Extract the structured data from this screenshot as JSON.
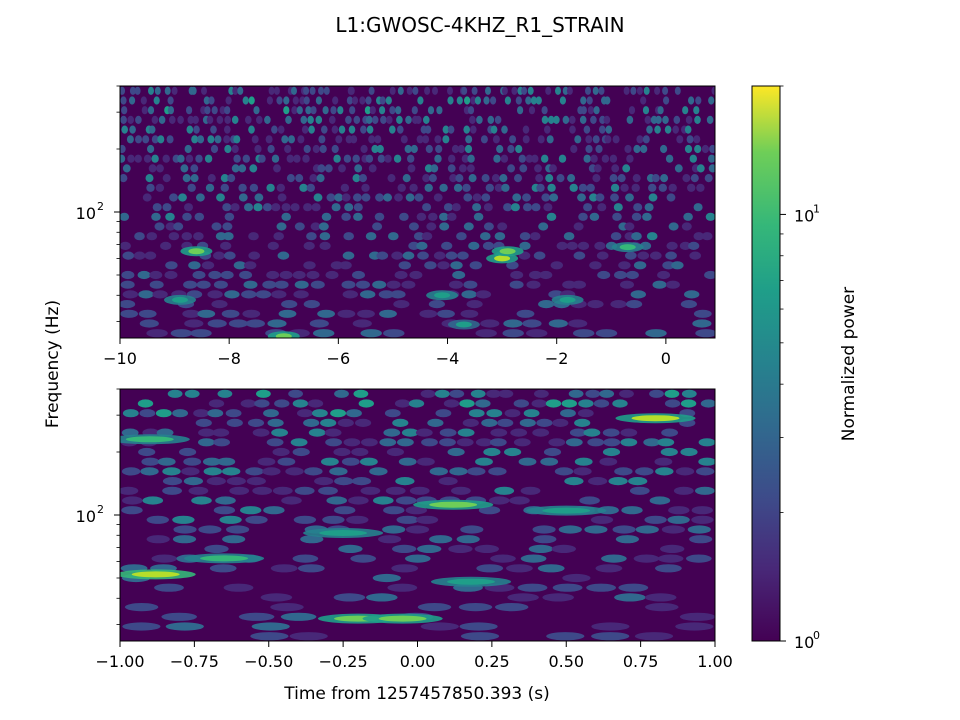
{
  "figure": {
    "suptitle": "L1:GWOSC-4KHZ_R1_STRAIN",
    "xlabel": "Time from 1257457850.393 (s)",
    "ylabel": "Frequency (Hz)",
    "colorbar_label": "Normalized power"
  },
  "chart_data": [
    {
      "type": "heatmap",
      "title": "",
      "xlabel": "",
      "ylabel": "Frequency (Hz)",
      "xlim": [
        -10,
        0.9
      ],
      "ylim": [
        25,
        400
      ],
      "yscale": "log",
      "grid": false,
      "x_ticks": [
        -10,
        -8,
        -6,
        -4,
        -2,
        0
      ],
      "x_tick_labels": [
        "−10",
        "−8",
        "−6",
        "−4",
        "−2",
        "0"
      ],
      "y_ticks": [
        100
      ],
      "y_tick_labels": [
        "10",
        "2"
      ],
      "colormap": "viridis",
      "blobs": [
        {
          "x": -8.6,
          "f": 65,
          "v": 9
        },
        {
          "x": -7.0,
          "f": 25.5,
          "v": 11
        },
        {
          "x": -3.0,
          "f": 60,
          "v": 13
        },
        {
          "x": -2.9,
          "f": 65,
          "v": 10
        },
        {
          "x": -4.1,
          "f": 40,
          "v": 6
        },
        {
          "x": -8.9,
          "f": 38,
          "v": 6
        },
        {
          "x": -1.8,
          "f": 38,
          "v": 6
        },
        {
          "x": -0.7,
          "f": 68,
          "v": 8
        },
        {
          "x": -3.7,
          "f": 29,
          "v": 5
        }
      ]
    },
    {
      "type": "heatmap",
      "title": "",
      "xlabel": "Time from 1257457850.393 (s)",
      "ylabel": "Frequency (Hz)",
      "xlim": [
        -1,
        1
      ],
      "ylim": [
        25,
        400
      ],
      "yscale": "log",
      "grid": false,
      "x_ticks": [
        -1,
        -0.75,
        -0.5,
        -0.25,
        0,
        0.25,
        0.5,
        0.75,
        1
      ],
      "x_tick_labels": [
        "−1.00",
        "−0.75",
        "−0.50",
        "−0.25",
        "0.00",
        "0.25",
        "0.50",
        "0.75",
        "1.00"
      ],
      "y_ticks": [
        100
      ],
      "y_tick_labels": [
        "10",
        "2"
      ],
      "colormap": "viridis",
      "blobs": [
        {
          "x": -0.88,
          "f": 52,
          "v": 15
        },
        {
          "x": -0.65,
          "f": 62,
          "v": 8
        },
        {
          "x": -0.2,
          "f": 32,
          "v": 9
        },
        {
          "x": -0.05,
          "f": 32,
          "v": 10
        },
        {
          "x": 0.12,
          "f": 112,
          "v": 9
        },
        {
          "x": 0.8,
          "f": 290,
          "v": 13
        },
        {
          "x": 0.18,
          "f": 48,
          "v": 6
        },
        {
          "x": 0.5,
          "f": 105,
          "v": 6
        },
        {
          "x": -0.25,
          "f": 82,
          "v": 6
        },
        {
          "x": -0.9,
          "f": 230,
          "v": 7
        }
      ]
    }
  ],
  "colorbar": {
    "scale": "log",
    "range": [
      1,
      20
    ],
    "tick_values": [
      1,
      10
    ],
    "tick_labels": [
      {
        "base": "10",
        "exp": "0"
      },
      {
        "base": "10",
        "exp": "1"
      }
    ],
    "colormap": "viridis"
  }
}
